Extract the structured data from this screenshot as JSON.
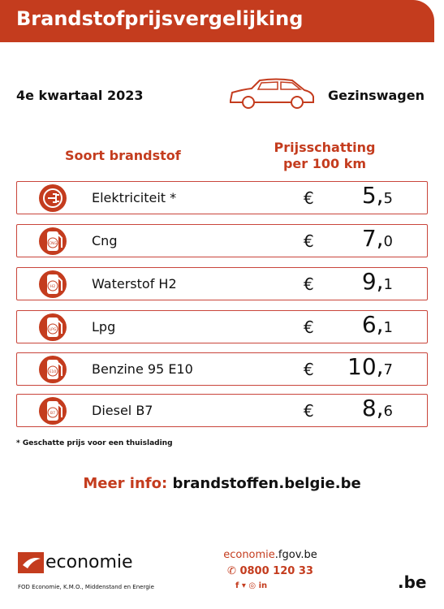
{
  "header": {
    "title": "Brandstofprijsvergelijking"
  },
  "period": "4e kwartaal 2023",
  "vehicle": "Gezinswagen",
  "columns": {
    "fuel": "Soort brandstof",
    "price_line1": "Prijsschatting",
    "price_line2": "per 100 km"
  },
  "rows": [
    {
      "name": "Elektriciteit *",
      "currency": "€",
      "whole": "5,",
      "decimal": "5"
    },
    {
      "name": "Cng",
      "badge": "CNG",
      "currency": "€",
      "whole": "7,",
      "decimal": "0"
    },
    {
      "name": "Waterstof H2",
      "badge": "H2",
      "currency": "€",
      "whole": "9,",
      "decimal": "1"
    },
    {
      "name": "Lpg",
      "badge": "LPG",
      "currency": "€",
      "whole": "6,",
      "decimal": "1"
    },
    {
      "name": "Benzine 95 E10",
      "badge": "E10",
      "currency": "€",
      "whole": "10,",
      "decimal": "7"
    },
    {
      "name": "Diesel B7",
      "badge": "B7",
      "currency": "€",
      "whole": "8,",
      "decimal": "6"
    }
  ],
  "footnote": "* Geschatte prijs voor een thuislading",
  "more_info": {
    "label": "Meer info:",
    "url": "brandstoffen.belgie.be"
  },
  "footer": {
    "brand": "economie",
    "org": "FOD Economie, K.M.O., Middenstand en Energie",
    "site_a": "economie",
    "site_b": ".fgov.be",
    "phone": "0800 120 33",
    "social": [
      "f",
      "in"
    ],
    "be": ".be"
  }
}
